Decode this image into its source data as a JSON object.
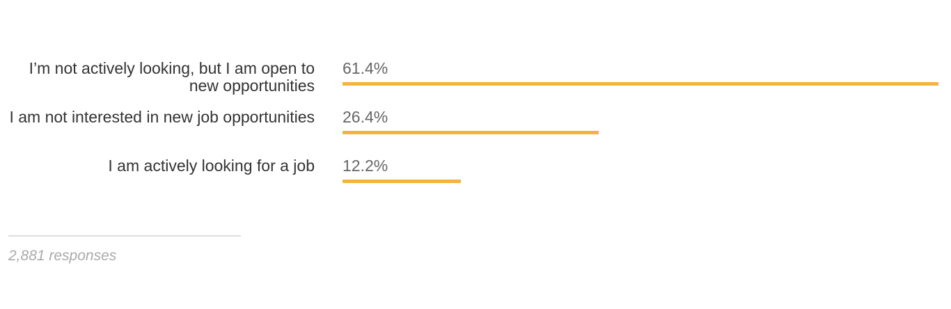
{
  "chart_data": {
    "type": "bar",
    "orientation": "horizontal",
    "categories": [
      "I’m not actively looking, but I am open to new opportunities",
      "I am not interested in new job opportunities",
      "I am actively looking for a job"
    ],
    "values": [
      61.4,
      26.4,
      12.2
    ],
    "value_labels": [
      "61.4%",
      "26.4%",
      "12.2%"
    ],
    "unit": "%",
    "bar_color": "#f6b33c",
    "xlim": [
      0,
      61.4
    ],
    "grid": false,
    "legend": "none"
  },
  "footer": {
    "responses": "2,881 responses"
  }
}
